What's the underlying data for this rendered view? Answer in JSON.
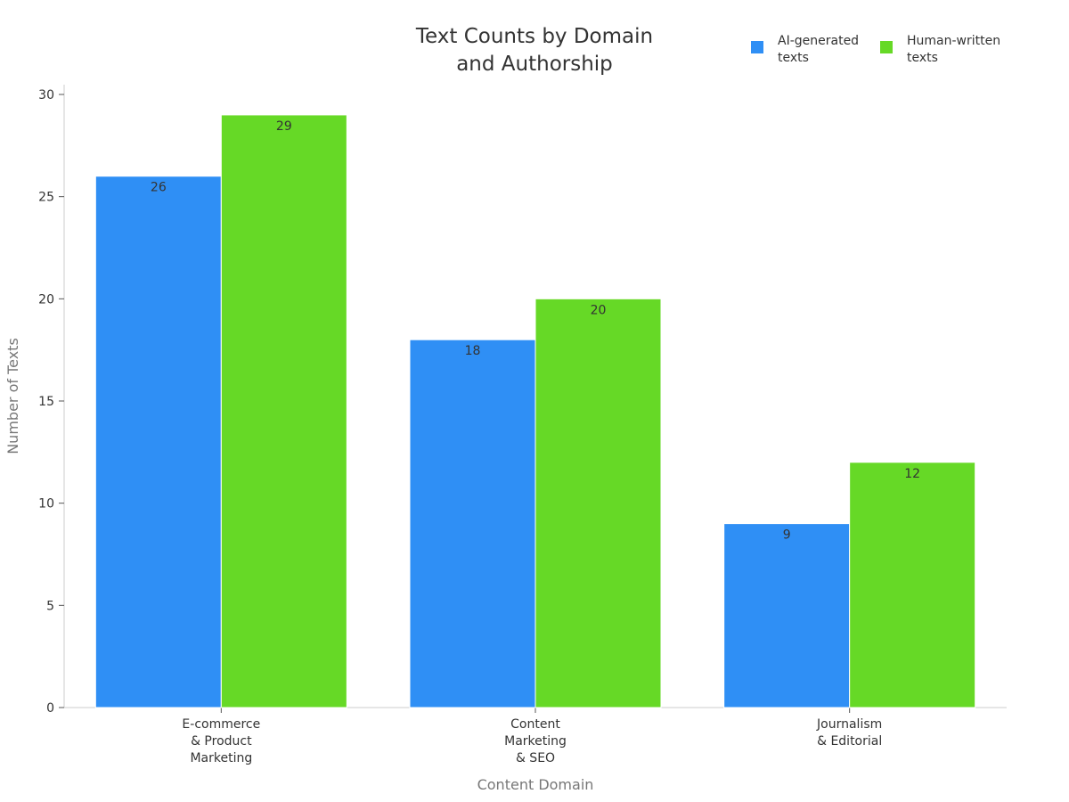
{
  "chart_data": {
    "type": "bar",
    "title": "Text Counts by Domain\nand Authorship",
    "xlabel": "Content Domain",
    "ylabel": "Number of Texts",
    "categories": [
      "E-commerce\n& Product\nMarketing",
      "Content\nMarketing\n& SEO",
      "Journalism\n& Editorial"
    ],
    "series": [
      {
        "name": "AI-generated\ntexts",
        "color": "#2f8ff5",
        "values": [
          26,
          18,
          9
        ]
      },
      {
        "name": "Human-written\ntexts",
        "color": "#66d926",
        "values": [
          29,
          20,
          12
        ]
      }
    ],
    "ylim": [
      0,
      30
    ],
    "yticks": [
      0,
      5,
      10,
      15,
      20,
      25,
      30
    ],
    "data_labels": true,
    "grid": false,
    "legend_position": "top-right"
  }
}
